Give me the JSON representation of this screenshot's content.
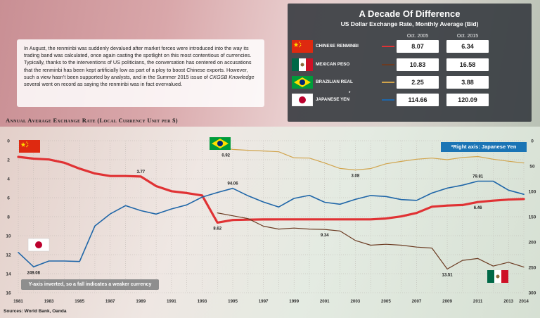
{
  "intro_text": "In August, the renminbi was suddenly devalued after market forces were introduced into the way its trading band was calculated, once again casting the spotlight on this most contentious of currencies. Typically, thanks to the interventions of US politicians, the conversation has centered on accusations that the renminbi has been kept artificially low as part of a ploy to boost Chinese exports. However, such a view hasn't been supported by analysts, and in the Summer 2015 issue of",
  "intro_italic": "CKGSB Knowledge",
  "intro_tail": " several went on record as saying the renminbi was in fact overvalued.",
  "panel": {
    "title": "A Decade Of Difference",
    "subtitle": "US Dollar Exchange Rate, Monthly Average (Bid)",
    "col1": "Oct. 2005",
    "col2": "Oct. 2015",
    "rows": [
      {
        "name": "CHINESE RENMINBI",
        "code": "RMB",
        "v2005": "8.07",
        "v2015": "6.34",
        "color": "#e03234",
        "flag": "china-flag-icon"
      },
      {
        "name": "MEXICAN PESO",
        "code": "MXP",
        "v2005": "10.83",
        "v2015": "16.58",
        "color": "#6b3b22",
        "flag": "mexico-flag-icon"
      },
      {
        "name": "BRAZILIAN REAL",
        "code": "BRL",
        "v2005": "2.25",
        "v2015": "3.88",
        "color": "#d1a44c",
        "flag": "brazil-flag-icon"
      },
      {
        "name": "JAPANESE YEN",
        "name_mark": "*",
        "code": "JPY",
        "v2005": "114.66",
        "v2015": "120.09",
        "color": "#1f66a8",
        "flag": "japan-flag-icon"
      }
    ]
  },
  "source": "Sources: World Bank, Oanda",
  "colors": {
    "rmb": "#e03234",
    "mxp": "#6b3b22",
    "brl": "#d1a44c",
    "jpy": "#1f66a8"
  },
  "chart_data": {
    "type": "line",
    "title": "Annual Average Exchange Rate (Local Currency Unit per $)",
    "note_right_axis": "*Right axis: Japanese Yen",
    "note_inverted": "Y-axis inverted, so a fall indicates a weaker currency",
    "x_ticks": [
      "1981",
      "1983",
      "1985",
      "1987",
      "1989",
      "1991",
      "1993",
      "1995",
      "1997",
      "1999",
      "2001",
      "2003",
      "2005",
      "2007",
      "2009",
      "2011",
      "2013",
      "2014"
    ],
    "y_left": {
      "ticks": [
        "0",
        "2",
        "4",
        "6",
        "8",
        "10",
        "12",
        "14",
        "16"
      ],
      "range": [
        0,
        16
      ],
      "inverted": true
    },
    "y_right": {
      "ticks": [
        "0",
        "50",
        "100",
        "150",
        "200",
        "250",
        "300"
      ],
      "range": [
        0,
        300
      ],
      "inverted": true
    },
    "series": [
      {
        "key": "rmb",
        "axis": "left",
        "x": [
          1981,
          1982,
          1983,
          1984,
          1985,
          1986,
          1987,
          1988,
          1989,
          1990,
          1991,
          1992,
          1993,
          1994,
          1995,
          1996,
          1997,
          1998,
          1999,
          2000,
          2001,
          2002,
          2003,
          2004,
          2005,
          2006,
          2007,
          2008,
          2009,
          2010,
          2011,
          2012,
          2013,
          2014
        ],
        "y": [
          1.7,
          1.89,
          1.98,
          2.32,
          2.94,
          3.45,
          3.72,
          3.72,
          3.77,
          4.78,
          5.32,
          5.51,
          5.76,
          8.62,
          8.35,
          8.31,
          8.29,
          8.28,
          8.28,
          8.28,
          8.28,
          8.28,
          8.28,
          8.28,
          8.19,
          7.97,
          7.61,
          6.95,
          6.83,
          6.77,
          6.46,
          6.31,
          6.2,
          6.14
        ]
      },
      {
        "key": "jpy",
        "axis": "right",
        "x": [
          1981,
          1982,
          1983,
          1984,
          1985,
          1986,
          1987,
          1988,
          1989,
          1990,
          1991,
          1992,
          1993,
          1994,
          1995,
          1996,
          1997,
          1998,
          1999,
          2000,
          2001,
          2002,
          2003,
          2004,
          2005,
          2006,
          2007,
          2008,
          2009,
          2010,
          2011,
          2012,
          2013,
          2014
        ],
        "y": [
          220.5,
          249.08,
          237.5,
          237.5,
          238.5,
          168.5,
          144.6,
          128.2,
          138.0,
          144.8,
          134.7,
          126.7,
          111.2,
          102.2,
          94.06,
          108.8,
          121.0,
          130.9,
          113.9,
          107.8,
          121.5,
          125.4,
          115.9,
          108.2,
          110.2,
          116.3,
          117.8,
          103.4,
          93.6,
          87.8,
          79.81,
          79.8,
          97.6,
          105.9
        ]
      },
      {
        "key": "brl",
        "axis": "left",
        "x": [
          1994,
          1995,
          1996,
          1997,
          1998,
          1999,
          2000,
          2001,
          2002,
          2003,
          2004,
          2005,
          2006,
          2007,
          2008,
          2009,
          2010,
          2011,
          2012,
          2013,
          2014
        ],
        "y": [
          0.64,
          0.92,
          1.01,
          1.08,
          1.16,
          1.81,
          1.83,
          2.35,
          2.92,
          3.08,
          2.93,
          2.43,
          2.18,
          1.95,
          1.83,
          2.0,
          1.76,
          1.67,
          1.95,
          2.16,
          2.35
        ]
      },
      {
        "key": "mxp",
        "axis": "left",
        "x": [
          1994,
          1995,
          1996,
          1997,
          1998,
          1999,
          2000,
          2001,
          2002,
          2003,
          2004,
          2005,
          2006,
          2007,
          2008,
          2009,
          2010,
          2011,
          2012,
          2013,
          2014
        ],
        "y": [
          7.6,
          7.9,
          8.2,
          9.0,
          9.3,
          9.2,
          9.3,
          9.34,
          9.5,
          10.5,
          11.0,
          10.9,
          11.0,
          11.2,
          11.3,
          13.51,
          12.6,
          12.4,
          13.2,
          12.8,
          13.3
        ]
      }
    ],
    "labels": [
      {
        "text": "3.77",
        "x": 1989,
        "y": 3.77,
        "axis": "left",
        "pos": "above"
      },
      {
        "text": "8.62",
        "x": 1994,
        "y": 8.62,
        "axis": "left",
        "pos": "below"
      },
      {
        "text": "0.92",
        "x": 1995,
        "y": 0.92,
        "axis": "left",
        "pos": "left"
      },
      {
        "text": "3.08",
        "x": 2003,
        "y": 3.08,
        "axis": "left",
        "pos": "below"
      },
      {
        "text": "9.34",
        "x": 2001,
        "y": 9.34,
        "axis": "left",
        "pos": "below"
      },
      {
        "text": "13.51",
        "x": 2009,
        "y": 13.51,
        "axis": "left",
        "pos": "below"
      },
      {
        "text": "94.06",
        "x": 1995,
        "y": 94.06,
        "axis": "right",
        "pos": "above"
      },
      {
        "text": "249.08",
        "x": 1982,
        "y": 249.08,
        "axis": "right",
        "pos": "below"
      },
      {
        "text": "79.81",
        "x": 2011,
        "y": 79.81,
        "axis": "right",
        "pos": "above"
      },
      {
        "text": "6.46",
        "x": 2011,
        "y": 6.46,
        "axis": "left",
        "pos": "below"
      }
    ]
  }
}
